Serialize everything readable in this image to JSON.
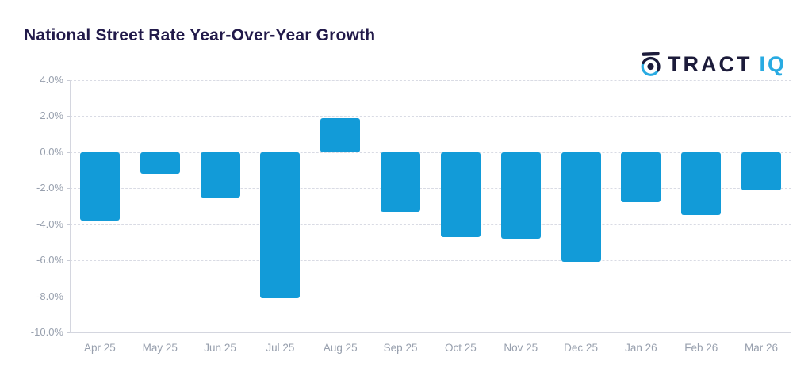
{
  "header": {
    "title": "National Street Rate Year-Over-Year Growth"
  },
  "logo": {
    "icon": "tractiq-target-icon",
    "text_dark": "TRACT",
    "text_accent": "IQ"
  },
  "colors": {
    "bar": "#129BD8",
    "accent": "#29ABE2",
    "logo_dark": "#1C1B3A",
    "title": "#221A4A",
    "axis_label": "#98A0AE",
    "gridline": "#D9DBE4"
  },
  "chart_data": {
    "type": "bar",
    "title": "National Street Rate Year-Over-Year Growth",
    "categories": [
      "Apr 25",
      "May 25",
      "Jun 25",
      "Jul 25",
      "Aug 25",
      "Sep 25",
      "Oct 25",
      "Nov 25",
      "Dec 25",
      "Jan 26",
      "Feb 26",
      "Mar 26"
    ],
    "values": [
      -3.8,
      -1.2,
      -2.5,
      -8.1,
      1.9,
      -3.3,
      -4.7,
      -4.8,
      -6.1,
      -2.8,
      -3.5,
      -2.1
    ],
    "unit": "%",
    "xlabel": "",
    "ylabel": "",
    "ylim": [
      -10,
      4
    ],
    "yticks": [
      4,
      2,
      0,
      -2,
      -4,
      -6,
      -8,
      -10
    ],
    "ytick_labels": [
      "4.0%",
      "2.0%",
      "0.0%",
      "-2.0%",
      "-4.0%",
      "-6.0%",
      "-8.0%",
      "-10.0%"
    ],
    "grid": "horizontal-dashed",
    "legend": "none",
    "bar_color": "#129BD8"
  }
}
